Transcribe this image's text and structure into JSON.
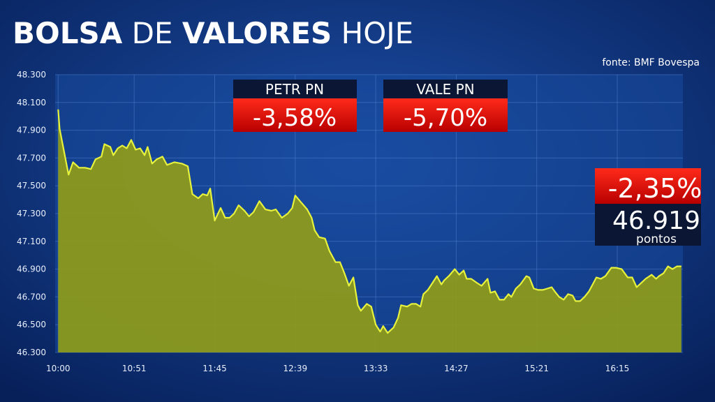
{
  "chart_data": {
    "type": "area",
    "title_parts": [
      "BOLSA",
      "DE",
      "VALORES",
      "HOJE"
    ],
    "source": "fonte: BMF Bovespa",
    "x": [
      600,
      601,
      607,
      610,
      614,
      618,
      622,
      625,
      629,
      631,
      635,
      637,
      640,
      643,
      646,
      649,
      652,
      655,
      658,
      660,
      663,
      666,
      670,
      673,
      678,
      683,
      687,
      690,
      694,
      697,
      700,
      702,
      705,
      709,
      712,
      715,
      718,
      721,
      725,
      728,
      731,
      735,
      739,
      743,
      746,
      750,
      754,
      757,
      759,
      763,
      767,
      770,
      772,
      775,
      779,
      782,
      786,
      789,
      792,
      795,
      798,
      801,
      803,
      807,
      810,
      813,
      816,
      818,
      821,
      825,
      828,
      830,
      834,
      837,
      840,
      843,
      845,
      848,
      851,
      854,
      857,
      859,
      862,
      866,
      869,
      872,
      874,
      877,
      881,
      884,
      888,
      890,
      893,
      896,
      899,
      902,
      904,
      907,
      910,
      914,
      916,
      919,
      922,
      925,
      928,
      931,
      933,
      936,
      939,
      942,
      945,
      947,
      950,
      953,
      956,
      959,
      961,
      964,
      967,
      971,
      974,
      978,
      982,
      985,
      988,
      991,
      994,
      998,
      1001,
      1003,
      1006,
      1009,
      1012,
      1015,
      1018
    ],
    "series": [
      {
        "color": "#e6f23c",
        "fill": "#8c9a1c",
        "values": [
          48050,
          47910,
          47580,
          47670,
          47630,
          47630,
          47620,
          47690,
          47710,
          47800,
          47780,
          47720,
          47770,
          47790,
          47770,
          47830,
          47760,
          47770,
          47720,
          47780,
          47660,
          47690,
          47710,
          47650,
          47670,
          47660,
          47640,
          47440,
          47410,
          47440,
          47430,
          47480,
          47250,
          47340,
          47270,
          47270,
          47300,
          47360,
          47320,
          47280,
          47310,
          47390,
          47330,
          47320,
          47330,
          47270,
          47300,
          47340,
          47430,
          47380,
          47330,
          47270,
          47180,
          47130,
          47120,
          47030,
          46950,
          46950,
          46870,
          46780,
          46840,
          46640,
          46600,
          46650,
          46630,
          46500,
          46450,
          46490,
          46440,
          46480,
          46550,
          46640,
          46630,
          46650,
          46650,
          46630,
          46720,
          46750,
          46800,
          46850,
          46790,
          46820,
          46850,
          46900,
          46860,
          46890,
          46830,
          46830,
          46800,
          46780,
          46830,
          46730,
          46740,
          46680,
          46680,
          46720,
          46700,
          46760,
          46790,
          46850,
          46840,
          46760,
          46750,
          46750,
          46760,
          46770,
          46740,
          46700,
          46680,
          46720,
          46710,
          46670,
          46670,
          46700,
          46740,
          46800,
          46840,
          46830,
          46850,
          46910,
          46910,
          46900,
          46840,
          46840,
          46770,
          46800,
          46830,
          46860,
          46830,
          46850,
          46870,
          46920,
          46900,
          46920,
          46920
        ]
      }
    ],
    "xlim": [
      598,
      1019
    ],
    "xticks": [
      {
        "value": 600,
        "label": "10:00"
      },
      {
        "value": 651,
        "label": "10:51"
      },
      {
        "value": 705,
        "label": "11:45"
      },
      {
        "value": 759,
        "label": "12:39"
      },
      {
        "value": 813,
        "label": "13:33"
      },
      {
        "value": 867,
        "label": "14:27"
      },
      {
        "value": 921,
        "label": "15:21"
      },
      {
        "value": 975,
        "label": "16:15"
      }
    ],
    "ylim": [
      46300,
      48300
    ],
    "yticks": [
      {
        "value": 46300,
        "label": "46.300"
      },
      {
        "value": 46500,
        "label": "46.500"
      },
      {
        "value": 46700,
        "label": "46.700"
      },
      {
        "value": 46900,
        "label": "46.900"
      },
      {
        "value": 47100,
        "label": "47.100"
      },
      {
        "value": 47300,
        "label": "47.300"
      },
      {
        "value": 47500,
        "label": "47.500"
      },
      {
        "value": 47700,
        "label": "47.700"
      },
      {
        "value": 47900,
        "label": "47.900"
      },
      {
        "value": 48100,
        "label": "48.100"
      },
      {
        "value": 48300,
        "label": "48.300"
      }
    ],
    "grid": true,
    "annotations": [
      {
        "label": "PETR PN",
        "value": "-3,58%"
      },
      {
        "label": "VALE PN",
        "value": "-5,70%"
      }
    ],
    "summary": {
      "change": "-2,35%",
      "points": "46.919",
      "unit": "pontos"
    }
  }
}
